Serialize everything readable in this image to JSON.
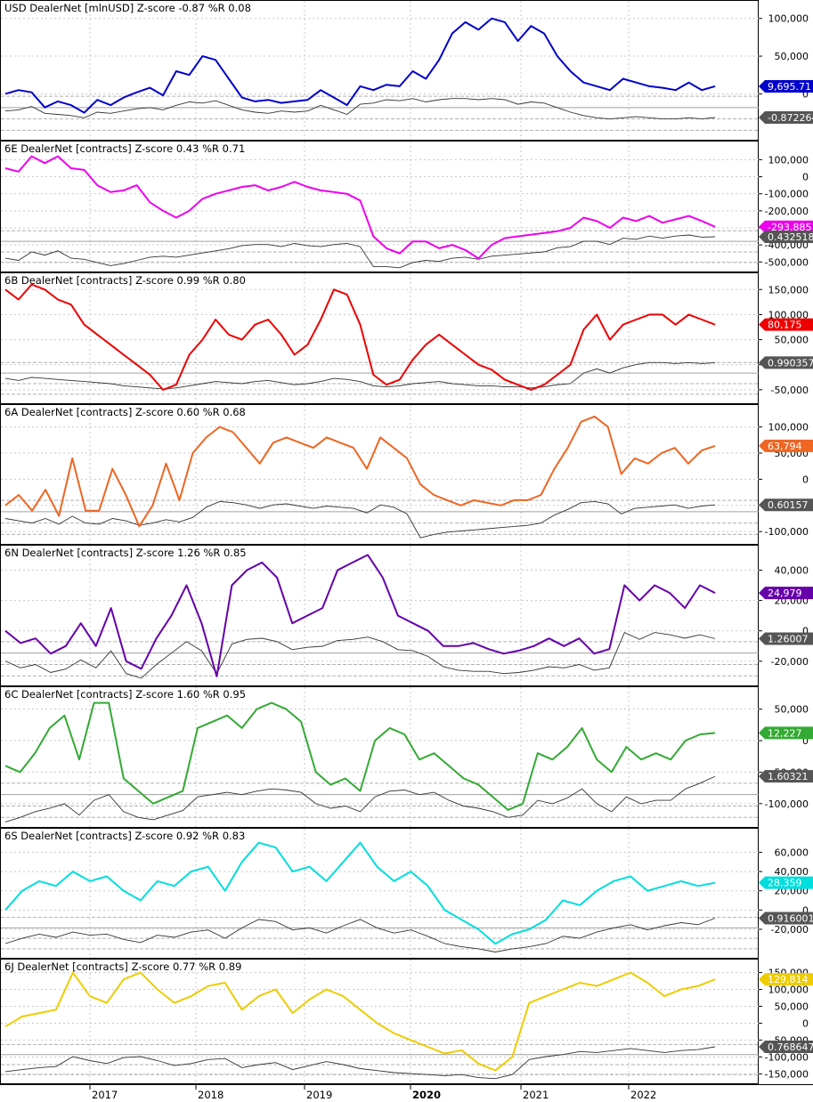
{
  "chart_data": {
    "type": "line",
    "x_ticks": [
      "2017",
      "2018",
      "2019",
      "2020",
      "2021",
      "2022"
    ],
    "grid": true,
    "panels": [
      {
        "title": "USD DealerNet [mlnUSD] Z-score -0.87   %R 0.08",
        "series_color": "#0000cc",
        "y_ticks": [
          "100,000",
          "50,000",
          "0"
        ],
        "ylim": [
          -55000,
          115000
        ],
        "last_value_label": "9,695.71",
        "zscore_label": "-0.872264",
        "series": [
          0,
          5000,
          2000,
          -18000,
          -10000,
          -15000,
          -25000,
          -8000,
          -15000,
          -5000,
          2000,
          8000,
          -2000,
          30000,
          25000,
          50000,
          45000,
          20000,
          -5000,
          -10000,
          -8000,
          -12000,
          -10000,
          -8000,
          5000,
          -5000,
          -15000,
          10000,
          5000,
          12000,
          10000,
          30000,
          20000,
          45000,
          80000,
          95000,
          85000,
          100000,
          95000,
          70000,
          90000,
          80000,
          50000,
          30000,
          15000,
          10000,
          5000,
          20000,
          15000,
          10000,
          8000,
          5000,
          15000,
          5000,
          10000
        ],
        "zscore_series": [
          -0.3,
          -0.2,
          0.1,
          -0.5,
          -0.6,
          -0.7,
          -0.9,
          -0.4,
          -0.5,
          -0.3,
          -0.1,
          0.0,
          -0.2,
          0.2,
          0.5,
          0.4,
          0.6,
          0.2,
          -0.2,
          -0.4,
          -0.5,
          -0.3,
          -0.4,
          -0.3,
          0.2,
          -0.2,
          -0.6,
          0.3,
          0.4,
          0.7,
          0.6,
          0.8,
          0.5,
          0.7,
          0.8,
          0.8,
          0.7,
          0.8,
          0.7,
          0.3,
          0.5,
          0.4,
          0.0,
          -0.4,
          -0.7,
          -0.9,
          -1.0,
          -0.9,
          -0.8,
          -0.9,
          -1.0,
          -1.0,
          -0.9,
          -1.0,
          -0.87
        ]
      },
      {
        "title": "6E DealerNet [contracts] Z-score 0.43   %R 0.71",
        "series_color": "#ee00ee",
        "y_ticks": [
          "100,000",
          "0",
          "-100,000",
          "-200,000",
          "-300,000",
          "-400,000",
          "-500,000"
        ],
        "ylim": [
          -530000,
          170000
        ],
        "last_value_label": "-293,885",
        "zscore_label": "0.432518",
        "series": [
          50000,
          30000,
          120000,
          80000,
          120000,
          50000,
          40000,
          -50000,
          -90000,
          -80000,
          -50000,
          -150000,
          -200000,
          -240000,
          -200000,
          -130000,
          -100000,
          -80000,
          -60000,
          -50000,
          -80000,
          -60000,
          -30000,
          -60000,
          -80000,
          -90000,
          -100000,
          -140000,
          -350000,
          -420000,
          -450000,
          -380000,
          -380000,
          -420000,
          -400000,
          -430000,
          -480000,
          -400000,
          -360000,
          -350000,
          -340000,
          -330000,
          -320000,
          -300000,
          -240000,
          -260000,
          -300000,
          -240000,
          -260000,
          -230000,
          -270000,
          -250000,
          -230000,
          -260000,
          -293885
        ],
        "zscore_series": [
          -1.6,
          -1.8,
          -1.0,
          -1.3,
          -0.9,
          -1.6,
          -1.7,
          -2.0,
          -2.3,
          -2.1,
          -1.8,
          -1.5,
          -1.4,
          -1.5,
          -1.3,
          -1.1,
          -0.9,
          -0.7,
          -0.4,
          -0.3,
          -0.3,
          -0.5,
          -0.2,
          -0.4,
          -0.5,
          -0.3,
          -0.2,
          -0.5,
          -2.4,
          -2.4,
          -2.5,
          -2.0,
          -1.8,
          -1.9,
          -1.6,
          -1.5,
          -1.7,
          -1.4,
          -1.3,
          -1.2,
          -1.1,
          -1.0,
          -0.6,
          -0.5,
          0.0,
          0.0,
          -0.3,
          0.3,
          0.2,
          0.5,
          0.3,
          0.5,
          0.6,
          0.4,
          0.43
        ]
      },
      {
        "title": "6B DealerNet [contracts] Z-score 0.99   %R 0.80",
        "series_color": "#ee0000",
        "y_ticks": [
          "150,000",
          "100,000",
          "50,000",
          "0",
          "-50,000"
        ],
        "ylim": [
          -68000,
          170000
        ],
        "last_value_label": "80,175",
        "zscore_label": "0.990357",
        "series": [
          150000,
          130000,
          160000,
          150000,
          130000,
          120000,
          80000,
          60000,
          40000,
          20000,
          0,
          -20000,
          -50000,
          -40000,
          20000,
          50000,
          90000,
          60000,
          50000,
          80000,
          90000,
          60000,
          20000,
          40000,
          90000,
          150000,
          140000,
          80000,
          -20000,
          -40000,
          -30000,
          10000,
          40000,
          60000,
          40000,
          20000,
          0,
          -10000,
          -30000,
          -40000,
          -50000,
          -40000,
          -20000,
          0,
          70000,
          100000,
          50000,
          80000,
          90000,
          100000,
          100000,
          80000,
          100000,
          90000,
          80000
        ],
        "zscore_series": [
          -0.5,
          -0.7,
          -0.4,
          -0.5,
          -0.6,
          -0.7,
          -0.8,
          -0.9,
          -1.0,
          -1.2,
          -1.3,
          -1.4,
          -1.5,
          -1.4,
          -1.2,
          -1.0,
          -0.8,
          -0.9,
          -1.0,
          -0.8,
          -0.7,
          -0.9,
          -1.1,
          -1.0,
          -0.8,
          -0.5,
          -0.6,
          -0.8,
          -1.2,
          -1.3,
          -1.2,
          -1.0,
          -0.9,
          -0.8,
          -1.0,
          -1.1,
          -1.2,
          -1.2,
          -1.3,
          -1.3,
          -1.4,
          -1.3,
          -1.1,
          -1.0,
          0.0,
          0.4,
          0.0,
          0.5,
          0.8,
          1.0,
          1.0,
          0.9,
          1.0,
          0.9,
          0.99
        ]
      },
      {
        "title": "6A DealerNet [contracts] Z-score 0.60   %R 0.68",
        "series_color": "#ee6622",
        "y_ticks": [
          "100,000",
          "50,000",
          "0",
          "-50,000",
          "-100,000"
        ],
        "ylim": [
          -115000,
          130000
        ],
        "last_value_label": "63,794",
        "zscore_label": "0.60157",
        "series": [
          -50000,
          -30000,
          -60000,
          -20000,
          -70000,
          40000,
          -60000,
          -60000,
          20000,
          -30000,
          -90000,
          -50000,
          30000,
          -40000,
          50000,
          80000,
          100000,
          90000,
          60000,
          30000,
          70000,
          80000,
          70000,
          60000,
          80000,
          70000,
          60000,
          20000,
          80000,
          60000,
          40000,
          -10000,
          -30000,
          -40000,
          -50000,
          -40000,
          -45000,
          -50000,
          -40000,
          -40000,
          -30000,
          20000,
          60000,
          110000,
          120000,
          100000,
          10000,
          40000,
          30000,
          50000,
          60000,
          30000,
          55000,
          63794
        ],
        "zscore_series": [
          -0.6,
          -0.8,
          -1.0,
          -0.6,
          -1.1,
          -0.4,
          -1.0,
          -1.1,
          -0.6,
          -0.8,
          -1.2,
          -1.0,
          -0.7,
          -0.9,
          -0.5,
          0.4,
          0.9,
          0.8,
          0.6,
          0.3,
          0.6,
          0.7,
          0.5,
          0.3,
          0.5,
          0.4,
          0.3,
          -0.1,
          0.6,
          0.4,
          -0.2,
          -2.3,
          -2.0,
          -1.8,
          -1.7,
          -1.6,
          -1.5,
          -1.4,
          -1.3,
          -1.2,
          -1.0,
          -0.3,
          0.2,
          0.8,
          0.9,
          0.7,
          -0.2,
          0.3,
          0.4,
          0.5,
          0.6,
          0.3,
          0.5,
          0.6
        ]
      },
      {
        "title": "6N DealerNet [contracts] Z-score 1.26   %R 0.85",
        "series_color": "#6600aa",
        "y_ticks": [
          "40,000",
          "20,000",
          "0",
          "-20,000"
        ],
        "ylim": [
          -33000,
          52000
        ],
        "last_value_label": "24,979",
        "zscore_label": "1.26007",
        "series": [
          0,
          -8000,
          -5000,
          -15000,
          -10000,
          5000,
          -10000,
          15000,
          -20000,
          -25000,
          -5000,
          10000,
          30000,
          5000,
          -30000,
          30000,
          40000,
          45000,
          35000,
          5000,
          10000,
          15000,
          40000,
          45000,
          50000,
          35000,
          10000,
          5000,
          0,
          -10000,
          -10000,
          -8000,
          -12000,
          -15000,
          -13000,
          -10000,
          -5000,
          -10000,
          -5000,
          -15000,
          -12000,
          30000,
          20000,
          30000,
          25000,
          15000,
          30000,
          24979
        ],
        "zscore_series": [
          -0.7,
          -1.3,
          -1.0,
          -1.7,
          -1.4,
          -0.6,
          -1.3,
          0.2,
          -1.8,
          -2.2,
          -1.0,
          0.0,
          1.0,
          0.2,
          -1.8,
          0.8,
          1.2,
          1.3,
          1.0,
          0.3,
          0.5,
          0.6,
          1.1,
          1.2,
          1.4,
          1.0,
          0.3,
          0.2,
          -0.3,
          -1.2,
          -1.5,
          -1.6,
          -1.6,
          -1.8,
          -1.7,
          -1.5,
          -1.2,
          -1.3,
          -1.0,
          -1.5,
          -1.3,
          1.8,
          1.2,
          1.8,
          1.6,
          1.3,
          1.6,
          1.26
        ]
      },
      {
        "title": "6C DealerNet [contracts] Z-score 1.60   %R 0.95",
        "series_color": "#33aa33",
        "y_ticks": [
          "50,000",
          "0",
          "-50,000",
          "-100,000"
        ],
        "ylim": [
          -130000,
          75000
        ],
        "last_value_label": "12,227",
        "zscore_label": "1.60321",
        "series": [
          -40000,
          -50000,
          -20000,
          20000,
          40000,
          -30000,
          60000,
          60000,
          -60000,
          -80000,
          -100000,
          -90000,
          -80000,
          20000,
          30000,
          40000,
          20000,
          50000,
          60000,
          50000,
          30000,
          -50000,
          -70000,
          -60000,
          -80000,
          0,
          20000,
          10000,
          -30000,
          -20000,
          -40000,
          -60000,
          -70000,
          -90000,
          -110000,
          -100000,
          -20000,
          -30000,
          -10000,
          20000,
          -30000,
          -50000,
          -10000,
          -30000,
          -20000,
          -30000,
          0,
          10000,
          12227
        ],
        "zscore_series": [
          -2.4,
          -2.0,
          -1.5,
          -1.2,
          -0.8,
          -1.8,
          -0.5,
          0.0,
          -1.5,
          -2.0,
          -2.2,
          -1.8,
          -1.4,
          -0.2,
          0.0,
          0.2,
          0.0,
          0.3,
          0.5,
          0.4,
          0.2,
          -0.8,
          -1.2,
          -1.0,
          -1.5,
          -0.2,
          0.3,
          0.4,
          0.0,
          0.2,
          -0.5,
          -1.0,
          -1.2,
          -1.5,
          -2.0,
          -1.8,
          -0.5,
          -0.8,
          -0.3,
          0.5,
          -0.8,
          -1.5,
          -0.2,
          -0.8,
          -0.5,
          -0.5,
          0.5,
          1.0,
          1.6
        ]
      },
      {
        "title": "6S DealerNet [contracts] Z-score 0.92   %R 0.83",
        "series_color": "#00dddd",
        "y_ticks": [
          "60,000",
          "40,000",
          "20,000",
          "0",
          "-20,000"
        ],
        "ylim": [
          -45000,
          78000
        ],
        "last_value_label": "28,359",
        "zscore_label": "0.916001",
        "series": [
          0,
          20000,
          30000,
          25000,
          40000,
          30000,
          35000,
          20000,
          10000,
          30000,
          25000,
          40000,
          45000,
          20000,
          50000,
          70000,
          65000,
          40000,
          45000,
          30000,
          50000,
          70000,
          45000,
          30000,
          40000,
          25000,
          0,
          -10000,
          -20000,
          -35000,
          -25000,
          -20000,
          -10000,
          10000,
          5000,
          20000,
          30000,
          35000,
          20000,
          25000,
          30000,
          25000,
          28359
        ],
        "zscore_series": [
          -1.5,
          -1.0,
          -0.6,
          -0.9,
          -0.4,
          -0.7,
          -0.6,
          -1.1,
          -1.4,
          -0.7,
          -0.9,
          -0.4,
          -0.2,
          -1.0,
          0.0,
          0.8,
          0.6,
          -0.2,
          0.0,
          -0.5,
          0.2,
          0.8,
          0.0,
          -0.5,
          -0.2,
          -0.8,
          -1.5,
          -1.8,
          -2.0,
          -2.3,
          -2.0,
          -1.8,
          -1.5,
          -0.8,
          -1.0,
          -0.4,
          0.0,
          0.3,
          -0.2,
          0.2,
          0.5,
          0.3,
          0.92
        ]
      },
      {
        "title": "6J DealerNet [contracts] Z-score 0.77   %R 0.89",
        "series_color": "#eecc00",
        "y_ticks": [
          "150,000",
          "100,000",
          "50,000",
          "0",
          "-50,000",
          "-100,000",
          "-150,000"
        ],
        "ylim": [
          -165000,
          170000
        ],
        "last_value_label": "129,814",
        "zscore_label": "0.768647",
        "series": [
          -10000,
          20000,
          30000,
          40000,
          150000,
          80000,
          60000,
          130000,
          150000,
          100000,
          60000,
          80000,
          110000,
          120000,
          40000,
          80000,
          100000,
          30000,
          70000,
          100000,
          80000,
          40000,
          0,
          -30000,
          -50000,
          -70000,
          -90000,
          -80000,
          -120000,
          -140000,
          -100000,
          60000,
          80000,
          100000,
          120000,
          110000,
          130000,
          150000,
          120000,
          80000,
          100000,
          110000,
          129814
        ],
        "zscore_series": [
          -1.7,
          -1.5,
          -1.3,
          -1.2,
          -0.2,
          -0.6,
          -0.9,
          -0.3,
          -0.2,
          -0.6,
          -1.1,
          -0.9,
          -0.5,
          -0.4,
          -1.3,
          -1.0,
          -0.8,
          -1.5,
          -1.1,
          -0.7,
          -1.0,
          -1.4,
          -1.6,
          -1.8,
          -1.9,
          -2.0,
          -2.1,
          -2.0,
          -2.3,
          -2.4,
          -2.0,
          -0.5,
          -0.2,
          0.0,
          0.3,
          0.2,
          0.4,
          0.6,
          0.4,
          0.2,
          0.4,
          0.5,
          0.77
        ]
      }
    ]
  }
}
